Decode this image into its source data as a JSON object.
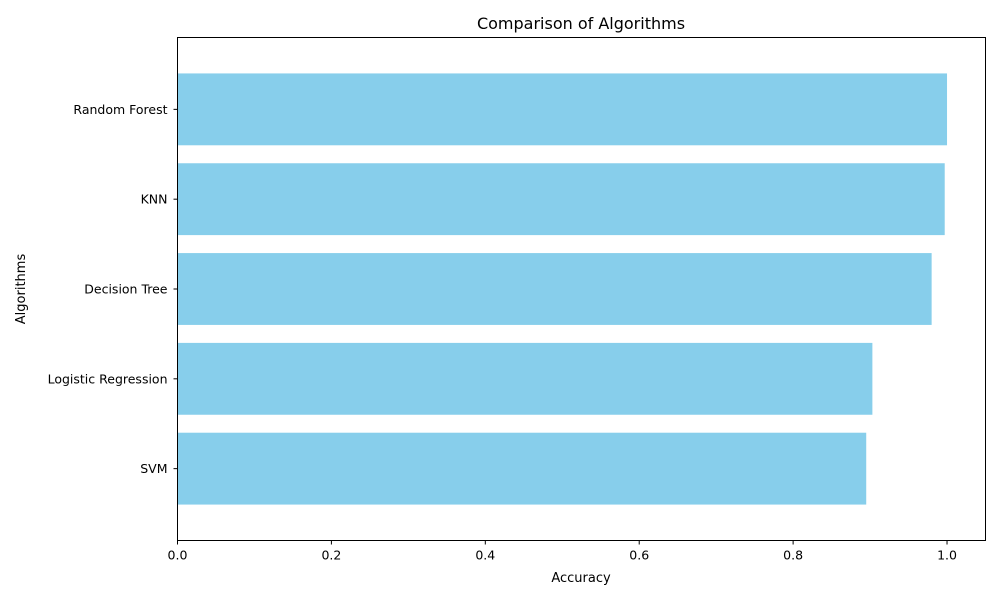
{
  "chart_data": {
    "type": "bar",
    "orientation": "horizontal",
    "title": "Comparison of Algorithms",
    "xlabel": "Accuracy",
    "ylabel": "Algorithms",
    "categories": [
      "SVM",
      "Logistic Regression",
      "Decision Tree",
      "KNN",
      "Random Forest"
    ],
    "values": [
      0.895,
      0.903,
      0.98,
      0.997,
      1.0
    ],
    "xlim": [
      0,
      1.05
    ],
    "xticks": [
      0.0,
      0.2,
      0.4,
      0.6,
      0.8,
      1.0
    ],
    "xtick_labels": [
      "0.0",
      "0.2",
      "0.4",
      "0.6",
      "0.8",
      "1.0"
    ],
    "bar_color": "#87ceeb",
    "grid": false,
    "legend": "none"
  }
}
